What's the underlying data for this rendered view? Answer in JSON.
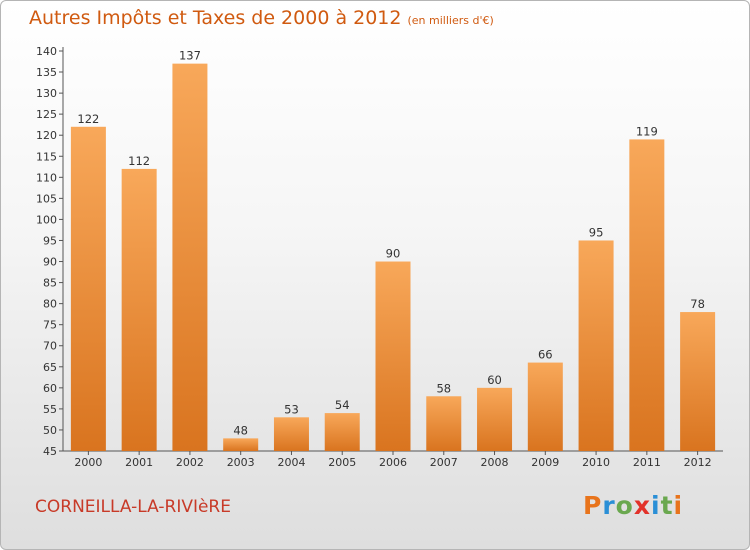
{
  "header": {
    "title": "Autres Impôts et Taxes de 2000 à 2012",
    "unit": "(en milliers d'€)"
  },
  "footer": {
    "commune": "CORNEILLA-LA-RIVIèRE",
    "logo_text": "Proxiti",
    "logo_colors": [
      "#e8741c",
      "#2a8fd6",
      "#6aa84f",
      "#e2322a",
      "#2a8fd6",
      "#6aa84f",
      "#e8741c"
    ]
  },
  "chart_data": {
    "type": "bar",
    "title": "Autres Impôts et Taxes de 2000 à 2012",
    "categories": [
      "2000",
      "2001",
      "2002",
      "2003",
      "2004",
      "2005",
      "2006",
      "2007",
      "2008",
      "2009",
      "2010",
      "2011",
      "2012"
    ],
    "values": [
      122,
      112,
      137,
      48,
      53,
      54,
      90,
      58,
      60,
      66,
      95,
      119,
      78
    ],
    "ylim": [
      45,
      140
    ],
    "ytick_step": 5,
    "grid": false,
    "bar_color_light": "#f8a85a",
    "bar_color_dark": "#d9741f"
  }
}
